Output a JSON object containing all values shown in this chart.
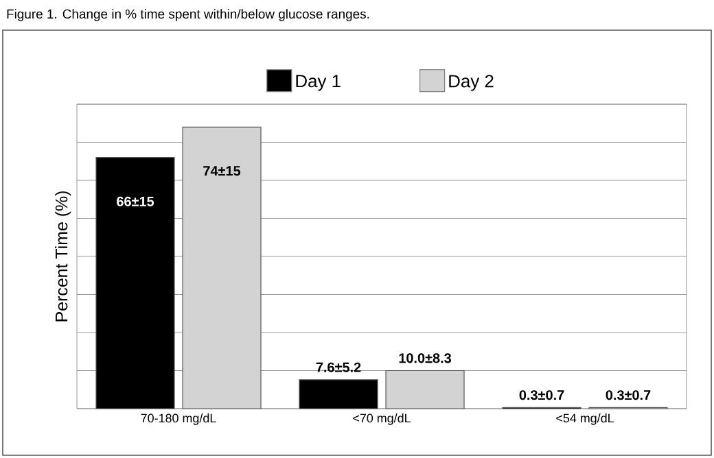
{
  "chart_data": {
    "type": "bar",
    "title": "Figure 1. Change in % time spent within/below glucose ranges.",
    "ylabel": "Percent Time (%)",
    "categories": [
      "70-180 mg/dL",
      "<70 mg/dL",
      "<54 mg/dL"
    ],
    "series": [
      {
        "name": "Day 1",
        "color": "#000000",
        "values": [
          66,
          7.6,
          0.3
        ],
        "value_labels": [
          "66±15",
          "7.6±5.2",
          "0.3±0.7"
        ]
      },
      {
        "name": "Day 2",
        "color": "#d3d3d3",
        "values": [
          74,
          10.0,
          0.3
        ],
        "value_labels": [
          "74±15",
          "10.0±8.3",
          "0.3±0.7"
        ]
      }
    ],
    "ylim": [
      0,
      80
    ],
    "yticks": [
      {
        "value": 0,
        "label": null
      },
      {
        "value": 10,
        "label": null
      },
      {
        "value": 20,
        "label": null
      },
      {
        "value": 30,
        "label": null
      },
      {
        "value": 40,
        "label": null
      },
      {
        "value": 50,
        "label": null
      },
      {
        "value": 60,
        "label": null
      },
      {
        "value": 70,
        "label": null
      },
      {
        "value": 80,
        "label": null
      }
    ],
    "tick_labels": "x",
    "grid": "y",
    "legend": "top"
  }
}
